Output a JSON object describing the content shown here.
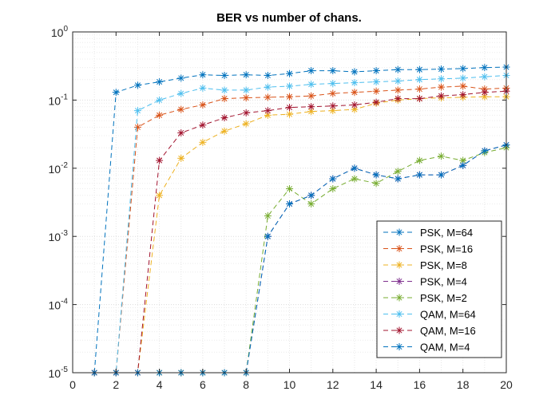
{
  "chart_data": {
    "type": "line",
    "title": "BER vs number of chans.",
    "xlabel": "",
    "ylabel": "",
    "xlim": [
      0,
      20
    ],
    "ylim": [
      1e-05,
      1
    ],
    "yscale": "log",
    "grid": "on (major and minor)",
    "legend_location": "bottom-right",
    "xticks": [
      0,
      2,
      4,
      6,
      8,
      10,
      12,
      14,
      16,
      18,
      20
    ],
    "x_tick_labels": [
      "0",
      "2",
      "4",
      "6",
      "8",
      "10",
      "12",
      "14",
      "16",
      "18",
      "20"
    ],
    "y_tick_labels": [
      {
        "value": 1,
        "base": "10",
        "exp": "0"
      },
      {
        "value": 0.1,
        "base": "10",
        "exp": "-1"
      },
      {
        "value": 0.01,
        "base": "10",
        "exp": "-2"
      },
      {
        "value": 0.001,
        "base": "10",
        "exp": "-3"
      },
      {
        "value": 0.0001,
        "base": "10",
        "exp": "-4"
      },
      {
        "value": 1e-05,
        "base": "10",
        "exp": "-5"
      }
    ],
    "marker": "asterisk",
    "line_style": "dashed",
    "x": [
      1,
      2,
      3,
      4,
      5,
      6,
      7,
      8,
      9,
      10,
      11,
      12,
      13,
      14,
      15,
      16,
      17,
      18,
      19,
      20
    ],
    "series": [
      {
        "name": "PSK, M=64",
        "color": "#0072BD",
        "values": [
          1e-05,
          0.13,
          0.165,
          0.185,
          0.21,
          0.235,
          0.23,
          0.235,
          0.23,
          0.245,
          0.27,
          0.27,
          0.26,
          0.27,
          0.28,
          0.28,
          0.285,
          0.29,
          0.3,
          0.305
        ]
      },
      {
        "name": "PSK, M=16",
        "color": "#D95319",
        "values": [
          1e-05,
          1e-05,
          0.04,
          0.06,
          0.073,
          0.085,
          0.105,
          0.108,
          0.11,
          0.112,
          0.115,
          0.125,
          0.13,
          0.135,
          0.14,
          0.145,
          0.155,
          0.16,
          0.145,
          0.15
        ]
      },
      {
        "name": "PSK, M=8",
        "color": "#EDB120",
        "values": [
          1e-05,
          1e-05,
          1e-05,
          0.004,
          0.014,
          0.024,
          0.035,
          0.045,
          0.06,
          0.062,
          0.068,
          0.07,
          0.073,
          0.09,
          0.1,
          0.105,
          0.108,
          0.11,
          0.112,
          0.112
        ]
      },
      {
        "name": "PSK, M=4",
        "color": "#7E2F8E",
        "values": [
          1e-05,
          1e-05,
          1e-05,
          1e-05,
          1e-05,
          1e-05,
          1e-05,
          1e-05,
          0.001,
          0.003,
          0.004,
          0.007,
          0.01,
          0.008,
          0.007,
          0.008,
          0.008,
          0.011,
          0.018,
          0.022
        ]
      },
      {
        "name": "PSK, M=2",
        "color": "#77AC30",
        "values": [
          1e-05,
          1e-05,
          1e-05,
          1e-05,
          1e-05,
          1e-05,
          1e-05,
          1e-05,
          0.002,
          0.005,
          0.003,
          0.005,
          0.007,
          0.006,
          0.009,
          0.013,
          0.015,
          0.013,
          0.017,
          0.02
        ]
      },
      {
        "name": "QAM, M=64",
        "color": "#4DBEEE",
        "values": [
          1e-05,
          1e-05,
          0.07,
          0.1,
          0.125,
          0.15,
          0.14,
          0.14,
          0.155,
          0.16,
          0.17,
          0.175,
          0.18,
          0.185,
          0.19,
          0.2,
          0.205,
          0.21,
          0.22,
          0.23
        ]
      },
      {
        "name": "QAM, M=16",
        "color": "#A2142F",
        "values": [
          1e-05,
          1e-05,
          1e-05,
          0.013,
          0.033,
          0.043,
          0.055,
          0.065,
          0.07,
          0.078,
          0.08,
          0.082,
          0.085,
          0.093,
          0.105,
          0.105,
          0.115,
          0.12,
          0.13,
          0.135
        ]
      },
      {
        "name": "QAM, M=4",
        "color": "#0072BD",
        "values": [
          1e-05,
          1e-05,
          1e-05,
          1e-05,
          1e-05,
          1e-05,
          1e-05,
          1e-05,
          0.001,
          0.003,
          0.004,
          0.007,
          0.01,
          0.008,
          0.007,
          0.008,
          0.008,
          0.011,
          0.018,
          0.022
        ]
      }
    ]
  }
}
